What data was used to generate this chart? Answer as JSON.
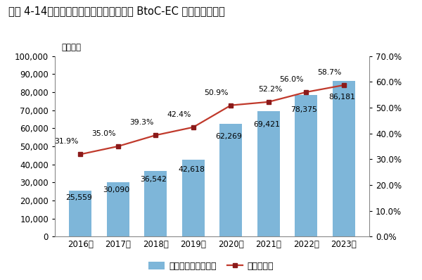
{
  "title": "図表 4-14：スマートフォン経由の物販の BtoC-EC 市場規模の推移",
  "years": [
    "2016年",
    "2017年",
    "2018年",
    "2019年",
    "2020年",
    "2021年",
    "2022年",
    "2023年"
  ],
  "bar_values": [
    25559,
    30090,
    36542,
    42618,
    62269,
    69421,
    78375,
    86181
  ],
  "bar_labels": [
    "25,559",
    "30,090",
    "36,542",
    "42,618",
    "62,269",
    "69,421",
    "78,375",
    "86,181"
  ],
  "line_values": [
    31.9,
    35.0,
    39.3,
    42.4,
    50.9,
    52.2,
    56.0,
    58.7
  ],
  "line_labels": [
    "31.9%",
    "35.0%",
    "39.3%",
    "42.4%",
    "50.9%",
    "52.2%",
    "56.0%",
    "58.7%"
  ],
  "bar_color": "#7EB6D9",
  "line_color": "#C0392B",
  "marker_color": "#8B1A1A",
  "ylabel_left": "（億円）",
  "ylim_left": [
    0,
    100000
  ],
  "ylim_right": [
    0,
    70.0
  ],
  "yticks_left": [
    0,
    10000,
    20000,
    30000,
    40000,
    50000,
    60000,
    70000,
    80000,
    90000,
    100000
  ],
  "yticks_right": [
    0.0,
    10.0,
    20.0,
    30.0,
    40.0,
    50.0,
    60.0,
    70.0
  ],
  "legend_bar_label": "スマホ経由市場規模",
  "legend_line_label": "スマホ比率",
  "bg_color": "#FFFFFF",
  "title_fontsize": 10.5,
  "tick_fontsize": 8.5,
  "bar_label_fontsize": 7.8,
  "line_label_fontsize": 7.8,
  "legend_fontsize": 9
}
